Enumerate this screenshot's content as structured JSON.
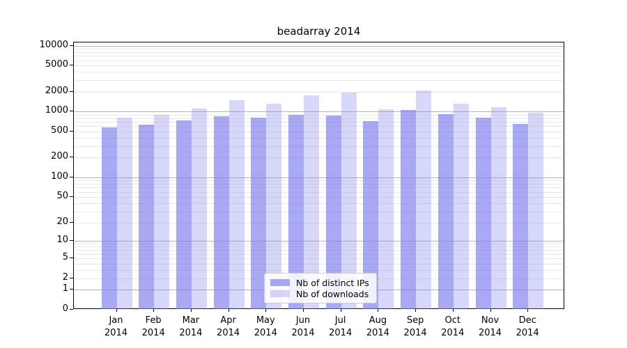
{
  "title": "beadarray 2014",
  "chart_data": {
    "type": "bar",
    "title": "beadarray 2014",
    "categories": [
      "Jan",
      "Feb",
      "Mar",
      "Apr",
      "May",
      "Jun",
      "Jul",
      "Aug",
      "Sep",
      "Oct",
      "Nov",
      "Dec"
    ],
    "category_year": "2014",
    "series": [
      {
        "name": "Nb of distinct IPs",
        "values": [
          580,
          640,
          730,
          860,
          820,
          900,
          870,
          715,
          1060,
          920,
          805,
          655
        ]
      },
      {
        "name": "Nb of downloads",
        "values": [
          810,
          900,
          1100,
          1470,
          1310,
          1780,
          1950,
          1080,
          2100,
          1310,
          1160,
          960
        ]
      }
    ],
    "xlabel": "",
    "ylabel": "",
    "yscale": "log10(1+v)",
    "ylim": [
      0,
      10000
    ],
    "y_ticks": [
      0,
      1,
      2,
      5,
      10,
      20,
      50,
      100,
      200,
      500,
      1000,
      2000,
      5000,
      10000
    ],
    "grid": "on",
    "legend_position": "lower center",
    "colors": {
      "bar_base": "121,121,237",
      "series_alpha": [
        0.65,
        0.3
      ],
      "grid_minor": "#e9e9e9",
      "grid_major": "#b4b4b4",
      "axis": "#000000"
    }
  }
}
